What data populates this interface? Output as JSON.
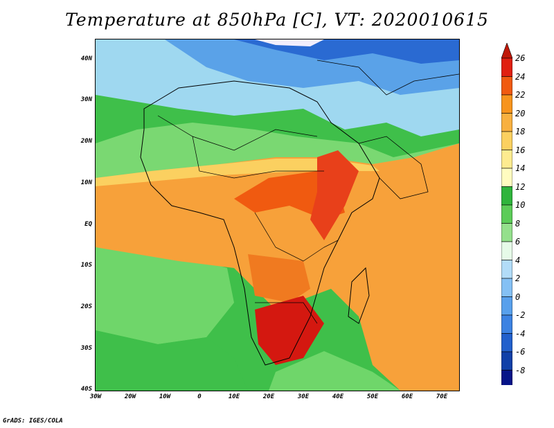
{
  "map": {
    "title": "Temperature at 850hPa [C], VT: 2020010615",
    "projection": "lat-lon",
    "lat_range": [
      -40,
      45
    ],
    "lon_range": [
      -30,
      75
    ],
    "lat_labels": [
      "40N",
      "30N",
      "20N",
      "10N",
      "EQ",
      "10S",
      "20S",
      "30S",
      "40S"
    ],
    "lon_labels": [
      "30W",
      "20W",
      "10W",
      "0",
      "10E",
      "20E",
      "30E",
      "40E",
      "50E",
      "60E",
      "70E"
    ],
    "credit": "GrADS: IGES/COLA",
    "colorbar": {
      "unit": "C",
      "tick_labels": [
        "26",
        "24",
        "22",
        "20",
        "18",
        "16",
        "14",
        "12",
        "10",
        "8",
        "6",
        "4",
        "2",
        "0",
        "-2",
        "-4",
        "-6",
        "-8"
      ],
      "colors": [
        "#e02010",
        "#f05a10",
        "#f7941d",
        "#f8b040",
        "#fbd060",
        "#fdeb90",
        "#fffcc0",
        "#2fb43c",
        "#5ccc58",
        "#94e08c",
        "#e6fae8",
        "#b2dcf8",
        "#84c0f4",
        "#58a0ec",
        "#3c82e2",
        "#2260cc",
        "#1040a8",
        "#061488"
      ],
      "over_color": "#c01808",
      "under_color": "#e0dcfa"
    }
  }
}
